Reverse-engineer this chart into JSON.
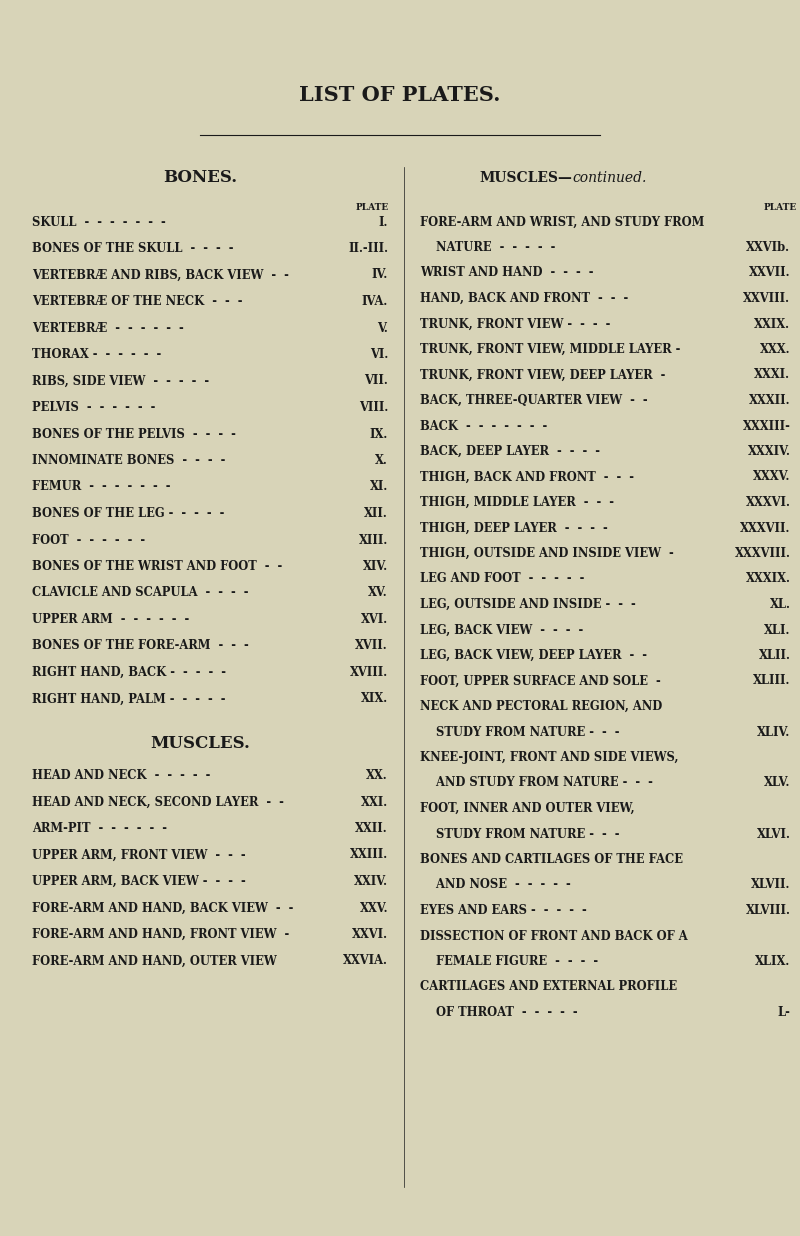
{
  "bg_color": "#d8d4b8",
  "text_color": "#1a1a1a",
  "title": "LIST OF PLATES.",
  "section_left": "BONES.",
  "muscles_section_header": "MUSCLES.",
  "muscles_right_header_bold": "MUSCLES—",
  "muscles_right_header_italic": "continued.",
  "bones_entries": [
    [
      "SKULL  -  -  -  -  -  -  -",
      "I."
    ],
    [
      "BONES OF THE SKULL  -  -  -  -",
      "II.-III."
    ],
    [
      "VERTEBRÆ AND RIBS, BACK VIEW  -  -",
      "IV."
    ],
    [
      "VERTEBRÆ OF THE NECK  -  -  -",
      "IVA."
    ],
    [
      "VERTEBRÆ  -  -  -  -  -  -",
      "V."
    ],
    [
      "THORAX -  -  -  -  -  -",
      "VI."
    ],
    [
      "RIBS, SIDE VIEW  -  -  -  -  -",
      "VII."
    ],
    [
      "PELVIS  -  -  -  -  -  -",
      "VIII."
    ],
    [
      "BONES OF THE PELVIS  -  -  -  -",
      "IX."
    ],
    [
      "INNOMINATE BONES  -  -  -  -",
      "X."
    ],
    [
      "FEMUR  -  -  -  -  -  -  -",
      "XI."
    ],
    [
      "BONES OF THE LEG -  -  -  -  -",
      "XII."
    ],
    [
      "FOOT  -  -  -  -  -  -",
      "XIII."
    ],
    [
      "BONES OF THE WRIST AND FOOT  -  -",
      "XIV."
    ],
    [
      "CLAVICLE AND SCAPULA  -  -  -  -",
      "XV."
    ],
    [
      "UPPER ARM  -  -  -  -  -  -",
      "XVI."
    ],
    [
      "BONES OF THE FORE-ARM  -  -  -",
      "XVII."
    ],
    [
      "RIGHT HAND, BACK -  -  -  -  -",
      "XVIII."
    ],
    [
      "RIGHT HAND, PALM -  -  -  -  -",
      "XIX."
    ]
  ],
  "muscles_entries_left": [
    [
      "HEAD AND NECK  -  -  -  -  -",
      "XX."
    ],
    [
      "HEAD AND NECK, SECOND LAYER  -  -",
      "XXI."
    ],
    [
      "ARM-PIT  -  -  -  -  -  -",
      "XXII."
    ],
    [
      "UPPER ARM, FRONT VIEW  -  -  -",
      "XXIII."
    ],
    [
      "UPPER ARM, BACK VIEW -  -  -  -",
      "XXIV."
    ],
    [
      "FORE-ARM AND HAND, BACK VIEW  -  -",
      "XXV."
    ],
    [
      "FORE-ARM AND HAND, FRONT VIEW  -",
      "XXVI."
    ],
    [
      "FORE-ARM AND HAND, OUTER VIEW",
      "XXVIA."
    ]
  ],
  "muscles_entries_right": [
    [
      "FORE-ARM AND WRIST, AND STUDY FROM",
      ""
    ],
    [
      "    NATURE  -  -  -  -  -",
      "XXVIb."
    ],
    [
      "WRIST AND HAND  -  -  -  -",
      "XXVII."
    ],
    [
      "HAND, BACK AND FRONT  -  -  -",
      "XXVIII."
    ],
    [
      "TRUNK, FRONT VIEW -  -  -  -",
      "XXIX."
    ],
    [
      "TRUNK, FRONT VIEW, MIDDLE LAYER -",
      "XXX."
    ],
    [
      "TRUNK, FRONT VIEW, DEEP LAYER  -",
      "XXXI."
    ],
    [
      "BACK, THREE-QUARTER VIEW  -  -",
      "XXXII."
    ],
    [
      "BACK  -  -  -  -  -  -  -",
      "XXXIII-"
    ],
    [
      "BACK, DEEP LAYER  -  -  -  -",
      "XXXIV."
    ],
    [
      "THIGH, BACK AND FRONT  -  -  -",
      "XXXV."
    ],
    [
      "THIGH, MIDDLE LAYER  -  -  -",
      "XXXVI."
    ],
    [
      "THIGH, DEEP LAYER  -  -  -  -",
      "XXXVII."
    ],
    [
      "THIGH, OUTSIDE AND INSIDE VIEW  -",
      "XXXVIII."
    ],
    [
      "LEG AND FOOT  -  -  -  -  -",
      "XXXIX."
    ],
    [
      "LEG, OUTSIDE AND INSIDE -  -  -",
      "XL."
    ],
    [
      "LEG, BACK VIEW  -  -  -  -",
      "XLI."
    ],
    [
      "LEG, BACK VIEW, DEEP LAYER  -  -",
      "XLII."
    ],
    [
      "FOOT, UPPER SURFACE AND SOLE  -",
      "XLIII."
    ],
    [
      "NECK AND PECTORAL REGION, AND",
      ""
    ],
    [
      "    STUDY FROM NATURE -  -  -",
      "XLIV."
    ],
    [
      "KNEE-JOINT, FRONT AND SIDE VIEWS,",
      ""
    ],
    [
      "    AND STUDY FROM NATURE -  -  -",
      "XLV."
    ],
    [
      "FOOT, INNER AND OUTER VIEW,",
      ""
    ],
    [
      "    STUDY FROM NATURE -  -  -",
      "XLVI."
    ],
    [
      "BONES AND CARTILAGES OF THE FACE",
      ""
    ],
    [
      "    AND NOSE  -  -  -  -  -",
      "XLVII."
    ],
    [
      "EYES AND EARS -  -  -  -  -",
      "XLVIII."
    ],
    [
      "DISSECTION OF FRONT AND BACK OF A",
      ""
    ],
    [
      "    FEMALE FIGURE  -  -  -  -",
      "XLIX."
    ],
    [
      "CARTILAGES AND EXTERNAL PROFILE",
      ""
    ],
    [
      "    OF THROAT  -  -  -  -  -",
      "L-"
    ]
  ]
}
